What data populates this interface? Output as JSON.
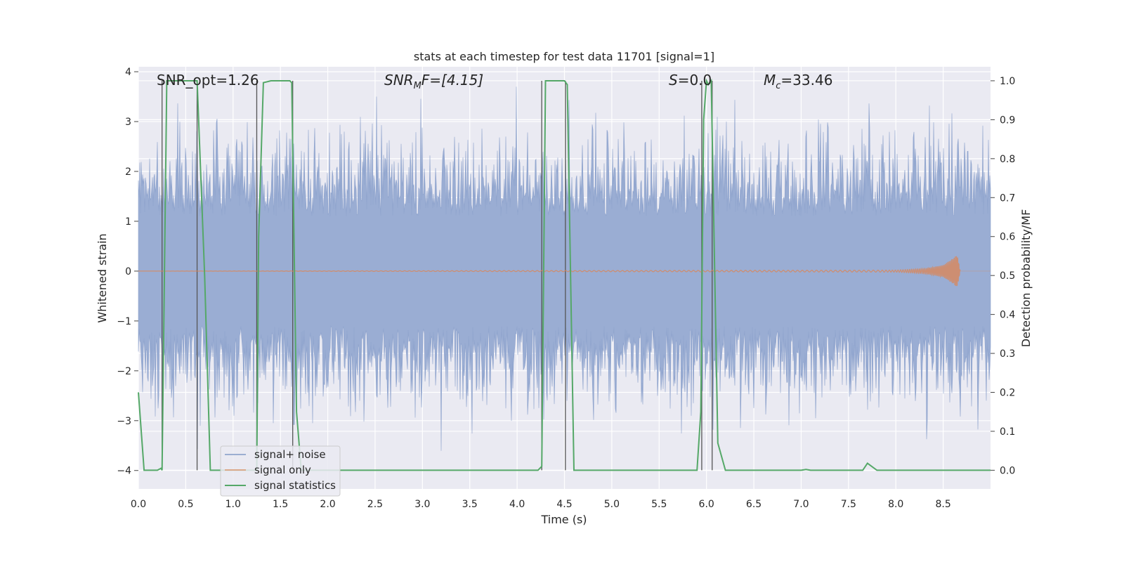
{
  "chart_data": {
    "type": "line",
    "title": "stats at each timestep for test data 11701 [signal=1]",
    "xlabel": "Time (s)",
    "ylabel_left": "Whitened strain",
    "ylabel_right": "Detection probability/MF",
    "xlim": [
      0.0,
      9.0
    ],
    "ylim_left": [
      -4.37,
      4.1
    ],
    "ylim_right": [
      -0.048,
      1.036
    ],
    "grid": true,
    "legend_position": "lower-left",
    "xticks": [
      "0.0",
      "0.5",
      "1.0",
      "1.5",
      "2.0",
      "2.5",
      "3.0",
      "3.5",
      "4.0",
      "4.5",
      "5.0",
      "5.5",
      "6.0",
      "6.5",
      "7.0",
      "7.5",
      "8.0",
      "8.5"
    ],
    "xtick_values": [
      0,
      0.5,
      1,
      1.5,
      2,
      2.5,
      3,
      3.5,
      4,
      4.5,
      5,
      5.5,
      6,
      6.5,
      7,
      7.5,
      8,
      8.5
    ],
    "yticks_left": [
      "4",
      "3",
      "2",
      "1",
      "0",
      "−1",
      "−2",
      "−3",
      "−4"
    ],
    "ytick_values_left": [
      4,
      3,
      2,
      1,
      0,
      -1,
      -2,
      -3,
      -4
    ],
    "yticks_right": [
      "1.0",
      "0.9",
      "0.8",
      "0.7",
      "0.6",
      "0.5",
      "0.4",
      "0.3",
      "0.2",
      "0.1",
      "0.0"
    ],
    "ytick_values_right": [
      1,
      0.9,
      0.8,
      0.7,
      0.6,
      0.5,
      0.4,
      0.3,
      0.2,
      0.1,
      0
    ],
    "annotations": {
      "snr_opt": "SNR_opt=1.26",
      "snr_mf_main": "SNR",
      "snr_mf_sub": "M",
      "snr_mf_rest": "F=[4.15]",
      "s_main": "S",
      "s_rest": "=0.0",
      "mc_main": "M",
      "mc_sub": "c",
      "mc_rest": "=33.46"
    },
    "series": [
      {
        "name": "signal+ noise",
        "color": "#4c72b0",
        "axis": "left",
        "description_values": {
          "typical_range": [
            -2.5,
            2.5
          ],
          "peak_max": 3.8,
          "peak_min": -4.0
        }
      },
      {
        "name": "signal only",
        "color": "#dd8452",
        "axis": "left",
        "x": [
          0.0,
          8.0,
          8.3,
          8.5,
          8.6,
          8.65,
          8.68
        ],
        "amplitude": [
          0.0,
          0.02,
          0.05,
          0.12,
          0.25,
          0.33,
          0.0
        ]
      },
      {
        "name": "signal statistics",
        "color": "#55a868",
        "axis": "right",
        "x": [
          0.0,
          0.06,
          0.2,
          0.24,
          0.25,
          0.3,
          0.5,
          0.62,
          0.7,
          0.76,
          1.25,
          1.27,
          1.32,
          1.4,
          1.6,
          1.62,
          1.67,
          1.72,
          4.22,
          4.26,
          4.3,
          4.5,
          4.53,
          4.6,
          5.9,
          5.94,
          5.97,
          6.0,
          6.02,
          6.05,
          6.12,
          6.2,
          7.0,
          7.05,
          7.1,
          7.6,
          7.65,
          7.7,
          7.8,
          9.0
        ],
        "y": [
          0.2,
          0.0,
          0.0,
          0.005,
          0.0,
          1.0,
          1.0,
          1.0,
          0.5,
          0.0,
          0.0,
          0.6,
          0.995,
          1.0,
          1.0,
          0.995,
          0.15,
          0.0,
          0.0,
          0.01,
          1.0,
          1.0,
          0.99,
          0.0,
          0.0,
          0.15,
          0.9,
          1.0,
          0.99,
          1.0,
          0.07,
          0.0,
          0.0,
          0.002,
          0.0,
          0.0,
          0.0,
          0.018,
          0.0,
          0.0
        ]
      }
    ],
    "vertical_markers_x": [
      0.25,
      0.62,
      1.25,
      1.63,
      4.26,
      4.51,
      5.95,
      6.06
    ],
    "legend": [
      "signal+ noise",
      "signal only",
      "signal statistics"
    ]
  }
}
